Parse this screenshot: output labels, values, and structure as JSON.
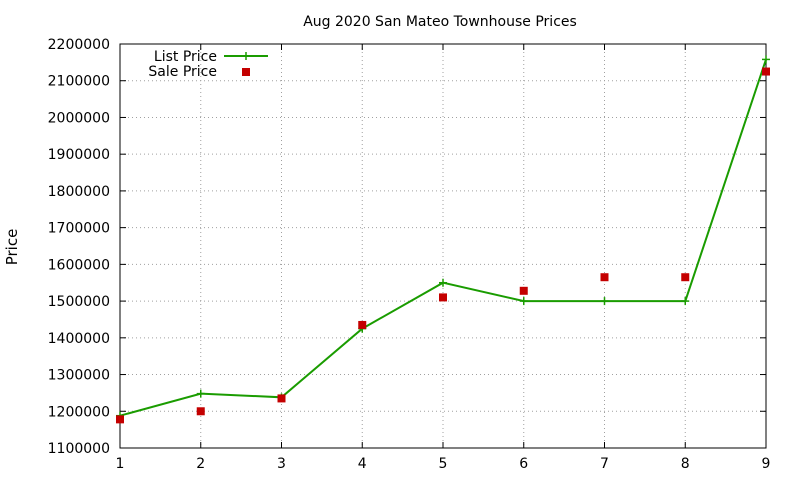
{
  "chart_data": {
    "type": "line",
    "title": "Aug 2020 San Mateo Townhouse Prices",
    "xlabel": "",
    "ylabel": "Price",
    "x": [
      1,
      2,
      3,
      4,
      5,
      6,
      7,
      8,
      9
    ],
    "xlim": [
      1,
      9
    ],
    "ylim": [
      1100000,
      2200000
    ],
    "xticks": [
      1,
      2,
      3,
      4,
      5,
      6,
      7,
      8,
      9
    ],
    "yticks": [
      1100000,
      1200000,
      1300000,
      1400000,
      1500000,
      1600000,
      1700000,
      1800000,
      1900000,
      2000000,
      2100000,
      2200000
    ],
    "grid": true,
    "legend_position": "top-left",
    "series": [
      {
        "name": "List Price",
        "style": "line-with-plus-markers",
        "color": "#1a9c00",
        "values": [
          1188000,
          1248000,
          1238000,
          1425000,
          1550000,
          1500000,
          1500000,
          1500000,
          2158000
        ]
      },
      {
        "name": "Sale Price",
        "style": "square-markers",
        "color": "#c40000",
        "values": [
          1178000,
          1200000,
          1235000,
          1435000,
          1510000,
          1528000,
          1565000,
          1565000,
          2125000
        ]
      }
    ]
  }
}
